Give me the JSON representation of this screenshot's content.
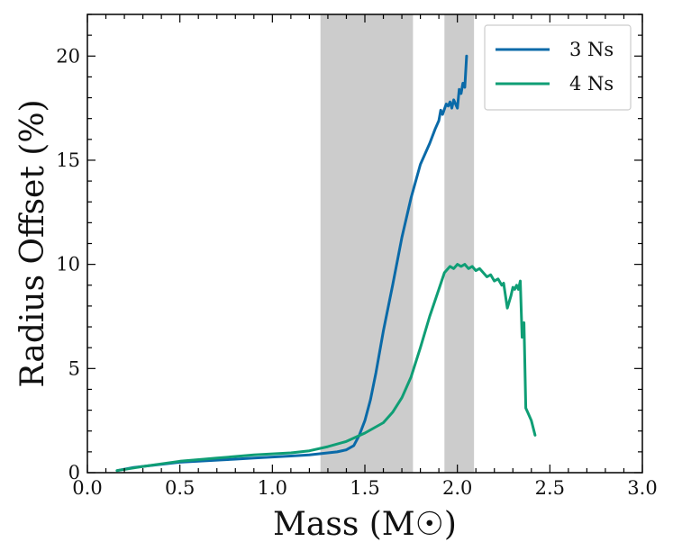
{
  "chart_data": {
    "type": "line",
    "title": "",
    "xlabel": "Mass (M☉)",
    "ylabel": "Radius Offset (%)",
    "xlim": [
      0.0,
      3.0
    ],
    "ylim": [
      0,
      22
    ],
    "xticks": [
      0.0,
      0.5,
      1.0,
      1.5,
      2.0,
      2.5,
      3.0
    ],
    "xtick_labels": [
      "0.0",
      "0.5",
      "1.0",
      "1.5",
      "2.0",
      "2.5",
      "3.0"
    ],
    "yticks": [
      0,
      5,
      10,
      15,
      20
    ],
    "ytick_labels": [
      "0",
      "5",
      "10",
      "15",
      "20"
    ],
    "grid": false,
    "legend": "top-right",
    "shaded_regions": [
      {
        "x0": 1.26,
        "x1": 1.76,
        "color": "#cccccc"
      },
      {
        "x0": 1.93,
        "x1": 2.09,
        "color": "#cccccc"
      }
    ],
    "series": [
      {
        "name": "3 Ns",
        "color": "#0a6aa8",
        "x": [
          0.16,
          0.25,
          0.35,
          0.5,
          0.6,
          0.7,
          0.8,
          0.9,
          1.0,
          1.1,
          1.2,
          1.3,
          1.35,
          1.4,
          1.44,
          1.47,
          1.5,
          1.53,
          1.56,
          1.6,
          1.65,
          1.7,
          1.75,
          1.8,
          1.85,
          1.88,
          1.9,
          1.91,
          1.92,
          1.94,
          1.95,
          1.96,
          1.97,
          1.98,
          1.99,
          2.0,
          2.01,
          2.02,
          2.03,
          2.04,
          2.05
        ],
        "y": [
          0.1,
          0.25,
          0.35,
          0.5,
          0.55,
          0.6,
          0.65,
          0.7,
          0.75,
          0.8,
          0.85,
          0.95,
          1.0,
          1.1,
          1.3,
          1.8,
          2.5,
          3.5,
          4.8,
          6.8,
          9.0,
          11.3,
          13.2,
          14.8,
          15.8,
          16.5,
          16.9,
          17.4,
          17.2,
          17.7,
          17.6,
          17.8,
          17.5,
          17.9,
          17.7,
          17.5,
          18.4,
          18.2,
          18.7,
          18.5,
          20.0
        ]
      },
      {
        "name": "4 Ns",
        "color": "#0f9e75",
        "x": [
          0.16,
          0.3,
          0.5,
          0.7,
          0.9,
          1.1,
          1.2,
          1.3,
          1.4,
          1.5,
          1.6,
          1.65,
          1.7,
          1.75,
          1.8,
          1.85,
          1.9,
          1.93,
          1.96,
          1.98,
          2.0,
          2.02,
          2.04,
          2.06,
          2.08,
          2.1,
          2.12,
          2.14,
          2.16,
          2.18,
          2.2,
          2.22,
          2.24,
          2.25,
          2.27,
          2.29,
          2.3,
          2.31,
          2.32,
          2.33,
          2.34,
          2.35,
          2.36,
          2.37,
          2.38,
          2.4,
          2.42
        ],
        "y": [
          0.1,
          0.3,
          0.55,
          0.7,
          0.85,
          0.95,
          1.05,
          1.25,
          1.5,
          1.9,
          2.4,
          2.9,
          3.6,
          4.6,
          6.0,
          7.5,
          8.8,
          9.6,
          9.9,
          9.8,
          10.0,
          9.9,
          10.0,
          9.8,
          9.9,
          9.7,
          9.8,
          9.6,
          9.4,
          9.5,
          9.2,
          9.3,
          9.0,
          9.1,
          7.9,
          8.5,
          8.9,
          8.8,
          9.0,
          8.8,
          9.2,
          6.5,
          7.2,
          3.1,
          2.9,
          2.5,
          1.8
        ]
      }
    ]
  }
}
